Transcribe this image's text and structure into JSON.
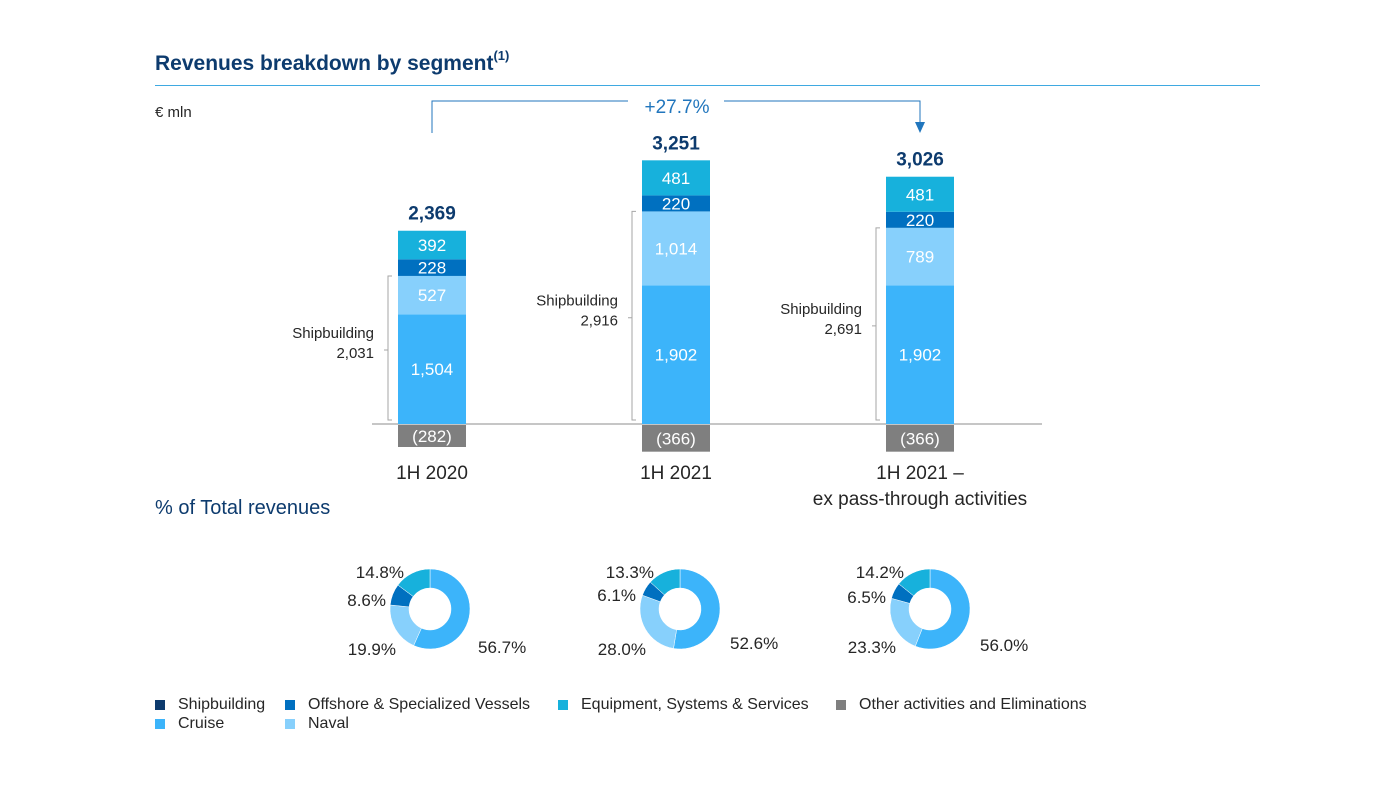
{
  "header": {
    "title": "Revenues breakdown by segment",
    "title_sup": "(1)",
    "unit": "€ mln"
  },
  "subtitle": "% of Total revenues",
  "colors": {
    "shipbuilding": "#0d3b6e",
    "offshore": "#0070c0",
    "equipment": "#17b1dc",
    "cruise": "#3cb4fa",
    "naval": "#87d0fc",
    "other": "#7f7f7f",
    "total": "#0d3b6e",
    "growth": "#2176bd"
  },
  "chart_data": [
    {
      "type": "bar",
      "stacked": true,
      "categories": [
        "1H 2020",
        "1H 2021",
        "1H 2021 – ex pass-through activities"
      ],
      "category_lines": [
        [
          "1H 2020"
        ],
        [
          "1H 2021"
        ],
        [
          "1H 2021 –",
          "ex pass-through activities"
        ]
      ],
      "series": [
        {
          "name": "Cruise",
          "values": [
            1504,
            1902,
            1902
          ],
          "labels": [
            "1,504",
            "1,902",
            "1,902"
          ]
        },
        {
          "name": "Naval",
          "values": [
            527,
            1014,
            789
          ],
          "labels": [
            "527",
            "1,014",
            "789"
          ]
        },
        {
          "name": "Offshore & Specialized Vessels",
          "values": [
            228,
            220,
            220
          ],
          "labels": [
            "228",
            "220",
            "220"
          ]
        },
        {
          "name": "Equipment, Systems & Services",
          "values": [
            392,
            481,
            481
          ],
          "labels": [
            "392",
            "481",
            "481"
          ]
        },
        {
          "name": "Other activities and Eliminations",
          "values": [
            -282,
            -366,
            -366
          ],
          "labels": [
            "(282)",
            "(366)",
            "(366)"
          ]
        }
      ],
      "totals": [
        "2,369",
        "3,251",
        "3,026"
      ],
      "shipbuilding_brackets": [
        {
          "label": "Shipbuilding",
          "value": "2,031"
        },
        {
          "label": "Shipbuilding",
          "value": "2,916"
        },
        {
          "label": "Shipbuilding",
          "value": "2,691"
        }
      ],
      "growth_label": "+27.7%",
      "ylabel": "€ mln"
    },
    {
      "type": "pie",
      "donut": true,
      "categories": [
        "Cruise",
        "Naval",
        "Offshore & Specialized Vessels",
        "Equipment, Systems & Services"
      ],
      "charts": [
        {
          "category": "1H 2020",
          "values": [
            56.7,
            19.9,
            8.6,
            14.8
          ],
          "labels": [
            "56.7%",
            "19.9%",
            "8.6%",
            "14.8%"
          ]
        },
        {
          "category": "1H 2021",
          "values": [
            52.6,
            28.0,
            6.1,
            13.3
          ],
          "labels": [
            "52.6%",
            "28.0%",
            "6.1%",
            "13.3%"
          ]
        },
        {
          "category": "1H 2021 – ex pass-through activities",
          "values": [
            56.0,
            23.3,
            6.5,
            14.2
          ],
          "labels": [
            "56.0%",
            "23.3%",
            "6.5%",
            "14.2%"
          ]
        }
      ]
    }
  ],
  "legend": [
    {
      "label": "Shipbuilding",
      "color_key": "shipbuilding"
    },
    {
      "label": "Offshore & Specialized Vessels",
      "color_key": "offshore"
    },
    {
      "label": "Equipment, Systems & Services",
      "color_key": "equipment"
    },
    {
      "label": "Other activities and Eliminations",
      "color_key": "other"
    },
    {
      "label": "Cruise",
      "color_key": "cruise"
    },
    {
      "label": "Naval",
      "color_key": "naval"
    }
  ]
}
